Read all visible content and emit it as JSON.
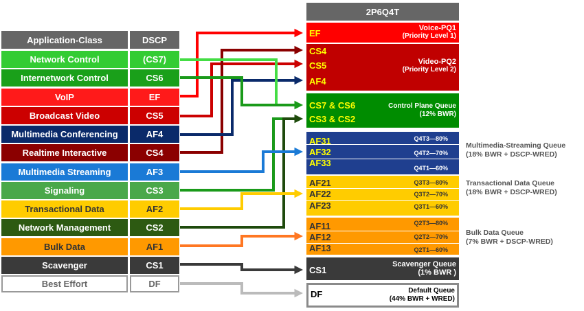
{
  "header": {
    "title": "2P6Q4T"
  },
  "table": {
    "col_class": "Application-Class",
    "col_dscp": "DSCP",
    "rows": [
      {
        "name": "Network Control",
        "dscp": "(CS7)",
        "bg": "#33cc33",
        "fg": "#ffffff"
      },
      {
        "name": "Internetwork Control",
        "dscp": "CS6",
        "bg": "#1aa01a",
        "fg": "#ffffff"
      },
      {
        "name": "VoIP",
        "dscp": "EF",
        "bg": "#ff1a1a",
        "fg": "#ffffff"
      },
      {
        "name": "Broadcast Video",
        "dscp": "CS5",
        "bg": "#cc0000",
        "fg": "#ffffff"
      },
      {
        "name": "Multimedia Conferencing",
        "dscp": "AF4",
        "bg": "#0a2a6a",
        "fg": "#ffffff"
      },
      {
        "name": "Realtime Interactive",
        "dscp": "CS4",
        "bg": "#8b0000",
        "fg": "#ffffff"
      },
      {
        "name": "Multimedia Streaming",
        "dscp": "AF3",
        "bg": "#1a7ad6",
        "fg": "#ffffff"
      },
      {
        "name": "Signaling",
        "dscp": "CS3",
        "bg": "#4aa84a",
        "fg": "#ffffff"
      },
      {
        "name": "Transactional Data",
        "dscp": "AF2",
        "bg": "#ffcc00",
        "fg": "#333333"
      },
      {
        "name": "Network Management",
        "dscp": "CS2",
        "bg": "#2d5a12",
        "fg": "#ffffff"
      },
      {
        "name": "Bulk Data",
        "dscp": "AF1",
        "bg": "#ff9900",
        "fg": "#333333"
      },
      {
        "name": "Scavenger",
        "dscp": "CS1",
        "bg": "#3a3a3a",
        "fg": "#ffffff"
      },
      {
        "name": "Best Effort",
        "dscp": "DF",
        "bg": "#ffffff",
        "fg": "#666666"
      }
    ]
  },
  "queues": {
    "voice": {
      "marks": [
        "EF"
      ],
      "label1": "Voice-PQ1",
      "label2": "(Priority Level 1)"
    },
    "video": {
      "marks": [
        "CS4",
        "CS5",
        "AF4"
      ],
      "label1": "Video-PQ2",
      "label2": "(Priority Level 2)"
    },
    "control": {
      "marks": [
        "CS7 & CS6",
        "CS3 & CS2"
      ],
      "label1": "Control Plane Queue",
      "label2": "(12% BWR)"
    },
    "mm_streaming": {
      "marks": [
        "AF31",
        "AF32",
        "AF33"
      ],
      "tiers": [
        "Q4T3—80%",
        "Q4T2—70%",
        "Q4T1—60%"
      ],
      "side1": "Multimedia-Streaming Queue",
      "side2": "(18% BWR + DSCP-WRED)"
    },
    "transactional": {
      "marks": [
        "AF21",
        "AF22",
        "AF23"
      ],
      "tiers": [
        "Q3T3—80%",
        "Q3T2—70%",
        "Q3T1—60%"
      ],
      "side1": "Transactional Data Queue",
      "side2": "(18% BWR + DSCP-WRED)"
    },
    "bulk": {
      "marks": [
        "AF11",
        "AF12",
        "AF13"
      ],
      "tiers": [
        "Q2T3—80%",
        "Q2T2—70%",
        "Q2T1—60%"
      ],
      "side1": "Bulk Data Queue",
      "side2": "(7% BWR + DSCP-WRED)"
    },
    "scavenger": {
      "marks": [
        "CS1"
      ],
      "label1": "Scavenger Queue",
      "label2": "(1% BWR )"
    },
    "default": {
      "marks": [
        "DF"
      ],
      "label1": "Default Queue",
      "label2": "(44% BWR + WRED)"
    }
  },
  "colors": {
    "header_gray": "#666666",
    "voice": "#ff0000",
    "video": "#c00000",
    "control": "#008c00",
    "mm_streaming": "#1f3f8f",
    "transactional": "#ffcc00",
    "bulk": "#ff9900",
    "scavenger": "#3a3a3a",
    "yellow_text": "#ffff00"
  }
}
